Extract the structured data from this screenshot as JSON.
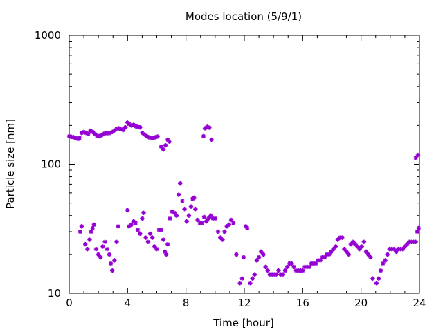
{
  "chart_data": {
    "type": "scatter",
    "title": "Modes location (5/9/1)",
    "xlabel": "Time [hour]",
    "ylabel": "Particle size [nm]",
    "x_unit": "hour",
    "y_scale": "log",
    "xlim": [
      0,
      24
    ],
    "ylim": [
      10,
      1000
    ],
    "x_ticks": [
      0,
      4,
      8,
      12,
      16,
      20,
      24
    ],
    "y_ticks": [
      10,
      100,
      1000
    ],
    "grid": false,
    "legend": "none",
    "marker_color": "#9400d3",
    "series": [
      {
        "values": [
          [
            0.0,
            165
          ],
          [
            0.15,
            163
          ],
          [
            0.3,
            162
          ],
          [
            0.45,
            160
          ],
          [
            0.6,
            157
          ],
          [
            0.7,
            160
          ],
          [
            0.85,
            175
          ],
          [
            1.0,
            178
          ],
          [
            1.15,
            175
          ],
          [
            1.3,
            172
          ],
          [
            1.45,
            182
          ],
          [
            1.6,
            178
          ],
          [
            1.75,
            172
          ],
          [
            1.9,
            166
          ],
          [
            2.05,
            165
          ],
          [
            2.2,
            168
          ],
          [
            2.35,
            172
          ],
          [
            2.5,
            174
          ],
          [
            2.65,
            174
          ],
          [
            2.8,
            175
          ],
          [
            2.95,
            178
          ],
          [
            3.1,
            183
          ],
          [
            3.25,
            188
          ],
          [
            3.4,
            190
          ],
          [
            3.55,
            187
          ],
          [
            3.7,
            184
          ],
          [
            3.85,
            193
          ],
          [
            4.0,
            210
          ],
          [
            4.1,
            205
          ],
          [
            4.25,
            200
          ],
          [
            4.4,
            202
          ],
          [
            4.55,
            197
          ],
          [
            4.7,
            195
          ],
          [
            4.85,
            193
          ],
          [
            5.0,
            175
          ],
          [
            5.15,
            170
          ],
          [
            5.3,
            165
          ],
          [
            5.45,
            162
          ],
          [
            5.6,
            160
          ],
          [
            5.75,
            160
          ],
          [
            5.9,
            162
          ],
          [
            6.05,
            164
          ],
          [
            6.3,
            137
          ],
          [
            6.45,
            130
          ],
          [
            6.6,
            140
          ],
          [
            6.75,
            155
          ],
          [
            6.85,
            150
          ],
          [
            9.2,
            165
          ],
          [
            9.3,
            190
          ],
          [
            9.45,
            195
          ],
          [
            9.6,
            192
          ],
          [
            9.75,
            155
          ],
          [
            23.75,
            112
          ],
          [
            23.9,
            118
          ]
        ]
      },
      {
        "values": [
          [
            0.75,
            30
          ],
          [
            0.85,
            33
          ],
          [
            1.1,
            24
          ],
          [
            1.25,
            22
          ],
          [
            1.4,
            26
          ],
          [
            1.5,
            30
          ],
          [
            1.6,
            32
          ],
          [
            1.7,
            34
          ],
          [
            1.85,
            22
          ],
          [
            2.0,
            20
          ],
          [
            2.15,
            19
          ],
          [
            2.3,
            23
          ],
          [
            2.45,
            25
          ],
          [
            2.6,
            22
          ],
          [
            2.75,
            20
          ],
          [
            2.85,
            17
          ],
          [
            2.95,
            15
          ],
          [
            3.1,
            18
          ],
          [
            3.25,
            25
          ],
          [
            3.35,
            33
          ],
          [
            4.0,
            44
          ],
          [
            4.1,
            33
          ],
          [
            4.25,
            34
          ],
          [
            4.4,
            36
          ],
          [
            4.55,
            35
          ],
          [
            4.7,
            31
          ],
          [
            4.85,
            29
          ],
          [
            5.0,
            38
          ],
          [
            5.1,
            42
          ],
          [
            5.25,
            27
          ],
          [
            5.4,
            25
          ],
          [
            5.55,
            29
          ],
          [
            5.7,
            27
          ],
          [
            5.85,
            23
          ],
          [
            6.0,
            22
          ],
          [
            6.15,
            31
          ],
          [
            6.3,
            31
          ],
          [
            6.45,
            26
          ],
          [
            6.55,
            21
          ],
          [
            6.65,
            20
          ],
          [
            6.75,
            24
          ],
          [
            6.9,
            38
          ],
          [
            7.05,
            43
          ],
          [
            7.2,
            42
          ],
          [
            7.35,
            40
          ],
          [
            7.5,
            58
          ],
          [
            7.6,
            71
          ],
          [
            7.75,
            52
          ],
          [
            7.9,
            45
          ],
          [
            8.05,
            36
          ],
          [
            8.2,
            40
          ],
          [
            8.35,
            47
          ],
          [
            8.45,
            54
          ],
          [
            8.55,
            55
          ],
          [
            8.65,
            45
          ],
          [
            8.8,
            37
          ],
          [
            8.95,
            35
          ],
          [
            9.1,
            35
          ],
          [
            9.25,
            39
          ],
          [
            9.4,
            36
          ],
          [
            9.55,
            38
          ],
          [
            9.7,
            40
          ],
          [
            9.85,
            38
          ],
          [
            10.0,
            38
          ],
          [
            10.2,
            30
          ],
          [
            10.35,
            27
          ],
          [
            10.5,
            26
          ],
          [
            10.65,
            30
          ],
          [
            10.8,
            33
          ],
          [
            10.95,
            34
          ],
          [
            11.1,
            37
          ],
          [
            11.25,
            35
          ],
          [
            11.45,
            20
          ],
          [
            11.7,
            12
          ],
          [
            11.85,
            13
          ],
          [
            11.95,
            19
          ],
          [
            12.1,
            33
          ],
          [
            12.2,
            32
          ],
          [
            12.4,
            12
          ],
          [
            12.55,
            13
          ],
          [
            12.7,
            14
          ],
          [
            12.85,
            18
          ],
          [
            13.0,
            19
          ],
          [
            13.15,
            21
          ],
          [
            13.3,
            20
          ],
          [
            13.45,
            16
          ],
          [
            13.6,
            15
          ],
          [
            13.75,
            14
          ],
          [
            13.9,
            14
          ],
          [
            14.05,
            14
          ],
          [
            14.2,
            14
          ],
          [
            14.35,
            15
          ],
          [
            14.5,
            14
          ],
          [
            14.65,
            14
          ],
          [
            14.8,
            15
          ],
          [
            14.95,
            16
          ],
          [
            15.1,
            17
          ],
          [
            15.25,
            17
          ],
          [
            15.4,
            16
          ],
          [
            15.55,
            15
          ],
          [
            15.7,
            15
          ],
          [
            15.85,
            15
          ],
          [
            16.0,
            15
          ],
          [
            16.15,
            16
          ],
          [
            16.3,
            16
          ],
          [
            16.45,
            16
          ],
          [
            16.6,
            17
          ],
          [
            16.75,
            17
          ],
          [
            16.9,
            17
          ],
          [
            17.05,
            18
          ],
          [
            17.2,
            18
          ],
          [
            17.35,
            19
          ],
          [
            17.5,
            19
          ],
          [
            17.65,
            20
          ],
          [
            17.8,
            20
          ],
          [
            17.95,
            21
          ],
          [
            18.1,
            22
          ],
          [
            18.25,
            23
          ],
          [
            18.4,
            26
          ],
          [
            18.55,
            27
          ],
          [
            18.7,
            27
          ],
          [
            18.85,
            22
          ],
          [
            19.0,
            21
          ],
          [
            19.15,
            20
          ],
          [
            19.3,
            24
          ],
          [
            19.45,
            25
          ],
          [
            19.6,
            24
          ],
          [
            19.75,
            23
          ],
          [
            19.9,
            22
          ],
          [
            20.05,
            23
          ],
          [
            20.2,
            25
          ],
          [
            20.35,
            21
          ],
          [
            20.5,
            20
          ],
          [
            20.65,
            19
          ],
          [
            20.8,
            13
          ],
          [
            21.05,
            12
          ],
          [
            21.2,
            13
          ],
          [
            21.35,
            15
          ],
          [
            21.5,
            17
          ],
          [
            21.65,
            18
          ],
          [
            21.8,
            20
          ],
          [
            21.95,
            22
          ],
          [
            22.1,
            22
          ],
          [
            22.25,
            22
          ],
          [
            22.4,
            21
          ],
          [
            22.55,
            22
          ],
          [
            22.7,
            22
          ],
          [
            22.85,
            22
          ],
          [
            23.0,
            23
          ],
          [
            23.15,
            24
          ],
          [
            23.3,
            25
          ],
          [
            23.45,
            25
          ],
          [
            23.6,
            25
          ],
          [
            23.75,
            25
          ],
          [
            23.85,
            30
          ],
          [
            23.95,
            32
          ]
        ]
      }
    ]
  }
}
